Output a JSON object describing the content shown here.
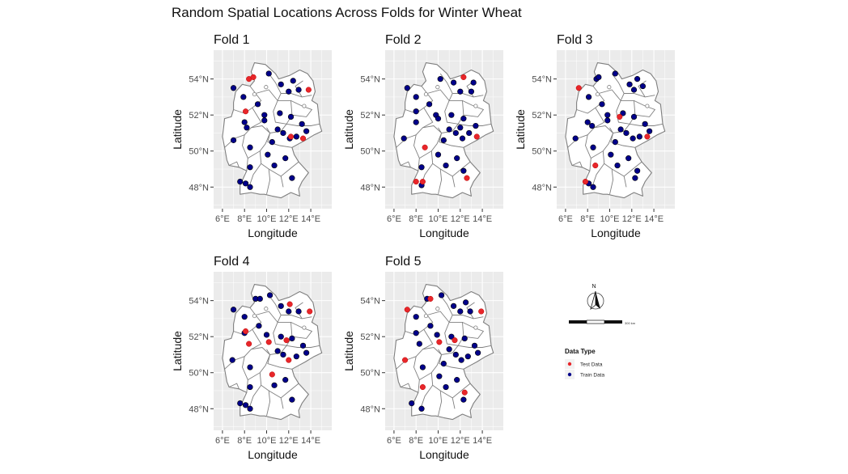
{
  "title": "Random Spatial Locations Across Folds for Winter Wheat",
  "axes": {
    "xlabel": "Longitude",
    "ylabel": "Latitude",
    "x_ticks": [
      "6°E",
      "8°E",
      "10°E",
      "12°E",
      "14°E"
    ],
    "y_ticks": [
      "48°N",
      "50°N",
      "52°N",
      "54°N"
    ],
    "x_tick_values": [
      6,
      8,
      10,
      12,
      14
    ],
    "y_tick_values": [
      48,
      50,
      52,
      54
    ],
    "xlim": [
      5.2,
      15.9
    ],
    "ylim": [
      46.8,
      55.6
    ]
  },
  "colors": {
    "test": "#e8262a",
    "train": "#00008b",
    "panel_bg": "#ebebeb",
    "grid": "#ffffff",
    "border": "#7f7f7f",
    "land": "#ffffff"
  },
  "legend": {
    "title": "Data Type",
    "items": [
      {
        "label": "Test Data",
        "color": "#e8262a"
      },
      {
        "label": "Train Data",
        "color": "#00008b"
      }
    ]
  },
  "north_arrow": {
    "label": "N"
  },
  "scale_bar": {
    "label": "300 km"
  },
  "chart_data": {
    "type": "scatter",
    "map_region": "Germany",
    "panels": [
      {
        "title": "Fold 1",
        "test": [
          [
            8.4,
            54.0
          ],
          [
            8.8,
            54.1
          ],
          [
            13.8,
            53.4
          ],
          [
            8.1,
            52.2
          ],
          [
            13.3,
            50.7
          ],
          [
            12.2,
            50.8
          ]
        ],
        "train": [
          [
            7.0,
            53.5
          ],
          [
            10.2,
            54.3
          ],
          [
            11.3,
            53.7
          ],
          [
            12.4,
            53.9
          ],
          [
            12.9,
            53.4
          ],
          [
            12.0,
            53.3
          ],
          [
            7.9,
            53.0
          ],
          [
            9.2,
            52.6
          ],
          [
            8.0,
            51.6
          ],
          [
            8.2,
            51.3
          ],
          [
            7.0,
            50.6
          ],
          [
            9.8,
            52.0
          ],
          [
            9.8,
            51.7
          ],
          [
            11.2,
            52.1
          ],
          [
            12.2,
            51.9
          ],
          [
            13.2,
            51.5
          ],
          [
            13.6,
            51.1
          ],
          [
            11.0,
            51.2
          ],
          [
            12.7,
            50.8
          ],
          [
            11.5,
            51.0
          ],
          [
            10.5,
            50.5
          ],
          [
            12.1,
            50.7
          ],
          [
            8.5,
            50.2
          ],
          [
            10.1,
            49.8
          ],
          [
            11.7,
            49.6
          ],
          [
            8.5,
            49.1
          ],
          [
            10.7,
            49.2
          ],
          [
            7.6,
            48.3
          ],
          [
            8.1,
            48.2
          ],
          [
            8.5,
            48.0
          ],
          [
            12.3,
            48.5
          ]
        ]
      },
      {
        "title": "Fold 2",
        "test": [
          [
            12.3,
            54.1
          ],
          [
            8.8,
            50.2
          ],
          [
            13.5,
            50.8
          ],
          [
            8.0,
            48.3
          ],
          [
            8.6,
            48.3
          ],
          [
            12.6,
            48.5
          ]
        ],
        "train": [
          [
            7.2,
            53.5
          ],
          [
            10.2,
            54.0
          ],
          [
            11.4,
            53.8
          ],
          [
            13.2,
            53.8
          ],
          [
            13.0,
            53.3
          ],
          [
            12.0,
            53.3
          ],
          [
            8.0,
            53.0
          ],
          [
            9.2,
            52.6
          ],
          [
            8.0,
            51.6
          ],
          [
            8.0,
            52.2
          ],
          [
            9.8,
            52.0
          ],
          [
            10.0,
            51.8
          ],
          [
            11.2,
            52.0
          ],
          [
            12.3,
            51.8
          ],
          [
            13.4,
            51.4
          ],
          [
            11.0,
            51.2
          ],
          [
            12.0,
            51.3
          ],
          [
            12.8,
            51.0
          ],
          [
            11.6,
            51.0
          ],
          [
            10.5,
            50.6
          ],
          [
            12.2,
            50.7
          ],
          [
            6.9,
            50.7
          ],
          [
            10.0,
            49.8
          ],
          [
            11.7,
            49.6
          ],
          [
            8.5,
            49.1
          ],
          [
            10.7,
            49.2
          ],
          [
            8.5,
            48.1
          ],
          [
            12.3,
            48.9
          ]
        ]
      },
      {
        "title": "Fold 3",
        "test": [
          [
            7.2,
            53.5
          ],
          [
            10.9,
            51.9
          ],
          [
            13.4,
            50.8
          ],
          [
            8.7,
            49.2
          ],
          [
            7.8,
            48.3
          ]
        ],
        "train": [
          [
            8.8,
            54.0
          ],
          [
            9.0,
            54.1
          ],
          [
            10.5,
            54.3
          ],
          [
            11.8,
            53.7
          ],
          [
            12.5,
            54.0
          ],
          [
            13.0,
            53.6
          ],
          [
            12.2,
            53.4
          ],
          [
            8.1,
            53.0
          ],
          [
            9.3,
            52.6
          ],
          [
            8.0,
            51.6
          ],
          [
            8.4,
            51.4
          ],
          [
            9.8,
            52.0
          ],
          [
            9.8,
            51.7
          ],
          [
            11.2,
            52.1
          ],
          [
            12.2,
            51.9
          ],
          [
            13.2,
            51.5
          ],
          [
            13.6,
            51.1
          ],
          [
            11.0,
            51.2
          ],
          [
            12.7,
            50.8
          ],
          [
            11.5,
            51.0
          ],
          [
            10.5,
            50.5
          ],
          [
            12.1,
            50.7
          ],
          [
            6.9,
            50.7
          ],
          [
            8.5,
            50.2
          ],
          [
            10.1,
            49.8
          ],
          [
            11.7,
            49.6
          ],
          [
            10.7,
            49.2
          ],
          [
            8.1,
            48.2
          ],
          [
            8.5,
            48.0
          ],
          [
            12.3,
            48.5
          ],
          [
            12.5,
            48.9
          ]
        ]
      },
      {
        "title": "Fold 4",
        "test": [
          [
            12.1,
            53.8
          ],
          [
            13.9,
            53.4
          ],
          [
            8.1,
            52.3
          ],
          [
            8.4,
            51.6
          ],
          [
            10.2,
            51.7
          ],
          [
            11.8,
            51.8
          ],
          [
            12.0,
            50.7
          ],
          [
            10.5,
            49.9
          ]
        ],
        "train": [
          [
            7.0,
            53.5
          ],
          [
            9.0,
            54.1
          ],
          [
            9.4,
            54.1
          ],
          [
            10.3,
            54.3
          ],
          [
            11.3,
            53.7
          ],
          [
            12.9,
            53.4
          ],
          [
            12.0,
            53.4
          ],
          [
            8.0,
            53.1
          ],
          [
            9.3,
            52.6
          ],
          [
            8.0,
            52.2
          ],
          [
            10.0,
            52.1
          ],
          [
            11.3,
            52.0
          ],
          [
            12.3,
            51.9
          ],
          [
            13.3,
            51.5
          ],
          [
            13.6,
            51.1
          ],
          [
            11.0,
            51.2
          ],
          [
            12.7,
            50.9
          ],
          [
            11.5,
            51.0
          ],
          [
            6.9,
            50.7
          ],
          [
            8.5,
            50.3
          ],
          [
            11.7,
            49.6
          ],
          [
            8.5,
            49.2
          ],
          [
            10.7,
            49.3
          ],
          [
            7.6,
            48.3
          ],
          [
            8.1,
            48.2
          ],
          [
            8.5,
            48.0
          ],
          [
            12.3,
            48.5
          ]
        ]
      },
      {
        "title": "Fold 5",
        "test": [
          [
            7.2,
            53.5
          ],
          [
            9.3,
            54.1
          ],
          [
            13.9,
            53.4
          ],
          [
            10.1,
            51.7
          ],
          [
            11.5,
            51.8
          ],
          [
            7.0,
            50.7
          ],
          [
            8.6,
            49.2
          ],
          [
            12.4,
            48.9
          ]
        ],
        "train": [
          [
            9.0,
            54.1
          ],
          [
            10.3,
            54.3
          ],
          [
            11.4,
            53.7
          ],
          [
            12.5,
            53.9
          ],
          [
            12.9,
            53.4
          ],
          [
            12.0,
            53.4
          ],
          [
            8.0,
            53.1
          ],
          [
            9.3,
            52.6
          ],
          [
            8.0,
            52.2
          ],
          [
            8.3,
            51.6
          ],
          [
            9.9,
            52.1
          ],
          [
            11.2,
            52.0
          ],
          [
            12.4,
            51.9
          ],
          [
            13.3,
            51.5
          ],
          [
            13.6,
            51.1
          ],
          [
            11.0,
            51.3
          ],
          [
            12.7,
            50.9
          ],
          [
            11.6,
            51.0
          ],
          [
            10.5,
            50.5
          ],
          [
            12.1,
            50.7
          ],
          [
            8.6,
            50.3
          ],
          [
            10.1,
            49.8
          ],
          [
            11.7,
            49.6
          ],
          [
            10.7,
            49.2
          ],
          [
            7.6,
            48.3
          ],
          [
            8.5,
            48.0
          ],
          [
            12.3,
            48.5
          ]
        ]
      }
    ]
  }
}
